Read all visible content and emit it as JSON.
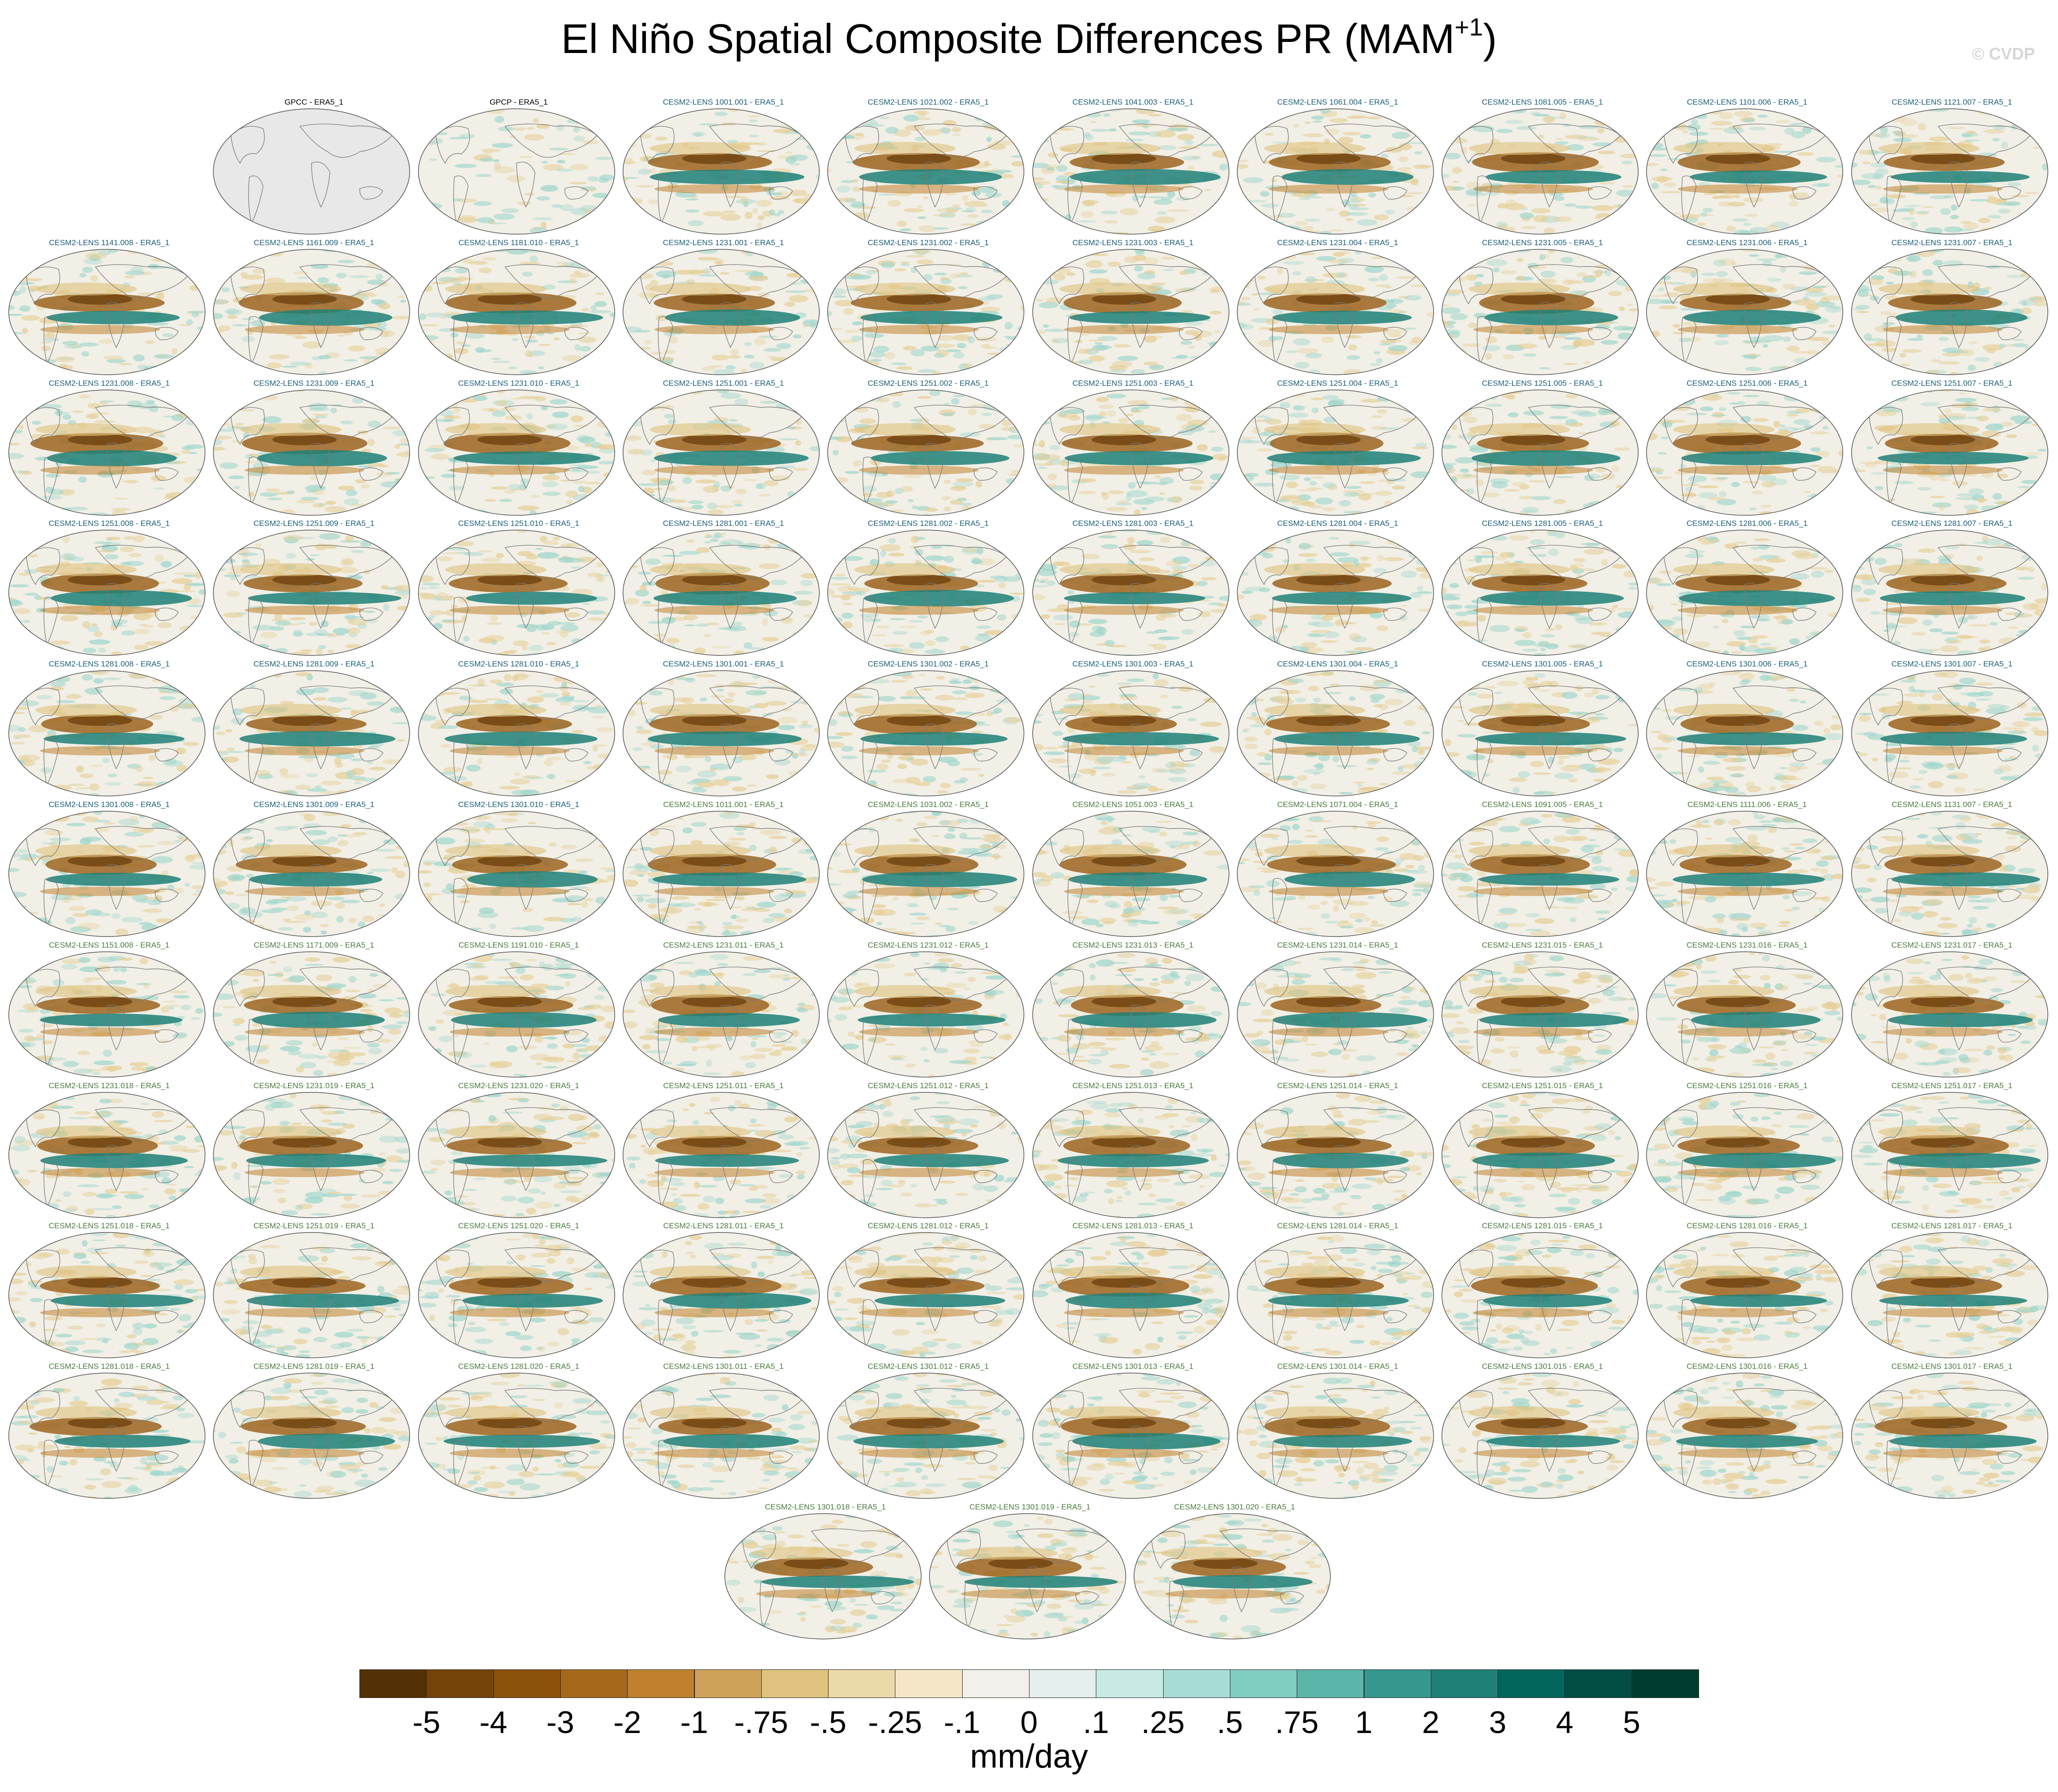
{
  "figure": {
    "title": "El Niño Spatial Composite Differences PR (MAM",
    "title_sup": "+1",
    "title_close": ")",
    "watermark": "© CVDP",
    "units": "mm/day"
  },
  "colorbar": {
    "ticks": [
      "-5",
      "-4",
      "-3",
      "-2",
      "-1",
      "-.75",
      "-.5",
      "-.25",
      "-.1",
      "0",
      ".1",
      ".25",
      ".5",
      ".75",
      "1",
      "2",
      "3",
      "4",
      "5"
    ],
    "colors": [
      "#543005",
      "#744409",
      "#8c510a",
      "#a6691c",
      "#bf812d",
      "#cfa25a",
      "#dfc27d",
      "#ecd9a8",
      "#f3e7c7",
      "#f2f0ea",
      "#e4efed",
      "#c7eae5",
      "#a6dcd3",
      "#80cdc1",
      "#5bb5a8",
      "#35978f",
      "#1f8077",
      "#01665e",
      "#024e45",
      "#003c30"
    ]
  },
  "panels": [
    {
      "label": "GPCC - ERA5_1",
      "group": "obs"
    },
    {
      "label": "GPCP - ERA5_1",
      "group": "obs"
    },
    {
      "label": "CESM2-LENS 1001.001 - ERA5_1",
      "group": "cmip"
    },
    {
      "label": "CESM2-LENS 1021.002 - ERA5_1",
      "group": "cmip"
    },
    {
      "label": "CESM2-LENS 1041.003 - ERA5_1",
      "group": "cmip"
    },
    {
      "label": "CESM2-LENS 1061.004 - ERA5_1",
      "group": "cmip"
    },
    {
      "label": "CESM2-LENS 1081.005 - ERA5_1",
      "group": "cmip"
    },
    {
      "label": "CESM2-LENS 1101.006 - ERA5_1",
      "group": "cmip"
    },
    {
      "label": "CESM2-LENS 1121.007 - ERA5_1",
      "group": "cmip"
    },
    {
      "label": "CESM2-LENS 1141.008 - ERA5_1",
      "group": "cmip"
    },
    {
      "label": "CESM2-LENS 1161.009 - ERA5_1",
      "group": "cmip"
    },
    {
      "label": "CESM2-LENS 1181.010 - ERA5_1",
      "group": "cmip"
    },
    {
      "label": "CESM2-LENS 1231.001 - ERA5_1",
      "group": "cmip"
    },
    {
      "label": "CESM2-LENS 1231.002 - ERA5_1",
      "group": "cmip"
    },
    {
      "label": "CESM2-LENS 1231.003 - ERA5_1",
      "group": "cmip"
    },
    {
      "label": "CESM2-LENS 1231.004 - ERA5_1",
      "group": "cmip"
    },
    {
      "label": "CESM2-LENS 1231.005 - ERA5_1",
      "group": "cmip"
    },
    {
      "label": "CESM2-LENS 1231.006 - ERA5_1",
      "group": "cmip"
    },
    {
      "label": "CESM2-LENS 1231.007 - ERA5_1",
      "group": "cmip"
    },
    {
      "label": "CESM2-LENS 1231.008 - ERA5_1",
      "group": "cmip"
    },
    {
      "label": "CESM2-LENS 1231.009 - ERA5_1",
      "group": "cmip"
    },
    {
      "label": "CESM2-LENS 1231.010 - ERA5_1",
      "group": "cmip"
    },
    {
      "label": "CESM2-LENS 1251.001 - ERA5_1",
      "group": "cmip"
    },
    {
      "label": "CESM2-LENS 1251.002 - ERA5_1",
      "group": "cmip"
    },
    {
      "label": "CESM2-LENS 1251.003 - ERA5_1",
      "group": "cmip"
    },
    {
      "label": "CESM2-LENS 1251.004 - ERA5_1",
      "group": "cmip"
    },
    {
      "label": "CESM2-LENS 1251.005 - ERA5_1",
      "group": "cmip"
    },
    {
      "label": "CESM2-LENS 1251.006 - ERA5_1",
      "group": "cmip"
    },
    {
      "label": "CESM2-LENS 1251.007 - ERA5_1",
      "group": "cmip"
    },
    {
      "label": "CESM2-LENS 1251.008 - ERA5_1",
      "group": "cmip"
    },
    {
      "label": "CESM2-LENS 1251.009 - ERA5_1",
      "group": "cmip"
    },
    {
      "label": "CESM2-LENS 1251.010 - ERA5_1",
      "group": "cmip"
    },
    {
      "label": "CESM2-LENS 1281.001 - ERA5_1",
      "group": "cmip"
    },
    {
      "label": "CESM2-LENS 1281.002 - ERA5_1",
      "group": "cmip"
    },
    {
      "label": "CESM2-LENS 1281.003 - ERA5_1",
      "group": "cmip"
    },
    {
      "label": "CESM2-LENS 1281.004 - ERA5_1",
      "group": "cmip"
    },
    {
      "label": "CESM2-LENS 1281.005 - ERA5_1",
      "group": "cmip"
    },
    {
      "label": "CESM2-LENS 1281.006 - ERA5_1",
      "group": "cmip"
    },
    {
      "label": "CESM2-LENS 1281.007 - ERA5_1",
      "group": "cmip"
    },
    {
      "label": "CESM2-LENS 1281.008 - ERA5_1",
      "group": "cmip"
    },
    {
      "label": "CESM2-LENS 1281.009 - ERA5_1",
      "group": "cmip"
    },
    {
      "label": "CESM2-LENS 1281.010 - ERA5_1",
      "group": "cmip"
    },
    {
      "label": "CESM2-LENS 1301.001 - ERA5_1",
      "group": "cmip"
    },
    {
      "label": "CESM2-LENS 1301.002 - ERA5_1",
      "group": "cmip"
    },
    {
      "label": "CESM2-LENS 1301.003 - ERA5_1",
      "group": "cmip"
    },
    {
      "label": "CESM2-LENS 1301.004 - ERA5_1",
      "group": "cmip"
    },
    {
      "label": "CESM2-LENS 1301.005 - ERA5_1",
      "group": "cmip"
    },
    {
      "label": "CESM2-LENS 1301.006 - ERA5_1",
      "group": "cmip"
    },
    {
      "label": "CESM2-LENS 1301.007 - ERA5_1",
      "group": "cmip"
    },
    {
      "label": "CESM2-LENS 1301.008 - ERA5_1",
      "group": "cmip"
    },
    {
      "label": "CESM2-LENS 1301.009 - ERA5_1",
      "group": "cmip"
    },
    {
      "label": "CESM2-LENS 1301.010 - ERA5_1",
      "group": "cmip"
    },
    {
      "label": "CESM2-LENS 1011.001 - ERA5_1",
      "group": "smbb"
    },
    {
      "label": "CESM2-LENS 1031.002 - ERA5_1",
      "group": "smbb"
    },
    {
      "label": "CESM2-LENS 1051.003 - ERA5_1",
      "group": "smbb"
    },
    {
      "label": "CESM2-LENS 1071.004 - ERA5_1",
      "group": "smbb"
    },
    {
      "label": "CESM2-LENS 1091.005 - ERA5_1",
      "group": "smbb"
    },
    {
      "label": "CESM2-LENS 1111.006 - ERA5_1",
      "group": "smbb"
    },
    {
      "label": "CESM2-LENS 1131.007 - ERA5_1",
      "group": "smbb"
    },
    {
      "label": "CESM2-LENS 1151.008 - ERA5_1",
      "group": "smbb"
    },
    {
      "label": "CESM2-LENS 1171.009 - ERA5_1",
      "group": "smbb"
    },
    {
      "label": "CESM2-LENS 1191.010 - ERA5_1",
      "group": "smbb"
    },
    {
      "label": "CESM2-LENS 1231.011 - ERA5_1",
      "group": "smbb"
    },
    {
      "label": "CESM2-LENS 1231.012 - ERA5_1",
      "group": "smbb"
    },
    {
      "label": "CESM2-LENS 1231.013 - ERA5_1",
      "group": "smbb"
    },
    {
      "label": "CESM2-LENS 1231.014 - ERA5_1",
      "group": "smbb"
    },
    {
      "label": "CESM2-LENS 1231.015 - ERA5_1",
      "group": "smbb"
    },
    {
      "label": "CESM2-LENS 1231.016 - ERA5_1",
      "group": "smbb"
    },
    {
      "label": "CESM2-LENS 1231.017 - ERA5_1",
      "group": "smbb"
    },
    {
      "label": "CESM2-LENS 1231.018 - ERA5_1",
      "group": "smbb"
    },
    {
      "label": "CESM2-LENS 1231.019 - ERA5_1",
      "group": "smbb"
    },
    {
      "label": "CESM2-LENS 1231.020 - ERA5_1",
      "group": "smbb"
    },
    {
      "label": "CESM2-LENS 1251.011 - ERA5_1",
      "group": "smbb"
    },
    {
      "label": "CESM2-LENS 1251.012 - ERA5_1",
      "group": "smbb"
    },
    {
      "label": "CESM2-LENS 1251.013 - ERA5_1",
      "group": "smbb"
    },
    {
      "label": "CESM2-LENS 1251.014 - ERA5_1",
      "group": "smbb"
    },
    {
      "label": "CESM2-LENS 1251.015 - ERA5_1",
      "group": "smbb"
    },
    {
      "label": "CESM2-LENS 1251.016 - ERA5_1",
      "group": "smbb"
    },
    {
      "label": "CESM2-LENS 1251.017 - ERA5_1",
      "group": "smbb"
    },
    {
      "label": "CESM2-LENS 1251.018 - ERA5_1",
      "group": "smbb"
    },
    {
      "label": "CESM2-LENS 1251.019 - ERA5_1",
      "group": "smbb"
    },
    {
      "label": "CESM2-LENS 1251.020 - ERA5_1",
      "group": "smbb"
    },
    {
      "label": "CESM2-LENS 1281.011 - ERA5_1",
      "group": "smbb"
    },
    {
      "label": "CESM2-LENS 1281.012 - ERA5_1",
      "group": "smbb"
    },
    {
      "label": "CESM2-LENS 1281.013 - ERA5_1",
      "group": "smbb"
    },
    {
      "label": "CESM2-LENS 1281.014 - ERA5_1",
      "group": "smbb"
    },
    {
      "label": "CESM2-LENS 1281.015 - ERA5_1",
      "group": "smbb"
    },
    {
      "label": "CESM2-LENS 1281.016 - ERA5_1",
      "group": "smbb"
    },
    {
      "label": "CESM2-LENS 1281.017 - ERA5_1",
      "group": "smbb"
    },
    {
      "label": "CESM2-LENS 1281.018 - ERA5_1",
      "group": "smbb"
    },
    {
      "label": "CESM2-LENS 1281.019 - ERA5_1",
      "group": "smbb"
    },
    {
      "label": "CESM2-LENS 1281.020 - ERA5_1",
      "group": "smbb"
    },
    {
      "label": "CESM2-LENS 1301.011 - ERA5_1",
      "group": "smbb"
    },
    {
      "label": "CESM2-LENS 1301.012 - ERA5_1",
      "group": "smbb"
    },
    {
      "label": "CESM2-LENS 1301.013 - ERA5_1",
      "group": "smbb"
    },
    {
      "label": "CESM2-LENS 1301.014 - ERA5_1",
      "group": "smbb"
    },
    {
      "label": "CESM2-LENS 1301.015 - ERA5_1",
      "group": "smbb"
    },
    {
      "label": "CESM2-LENS 1301.016 - ERA5_1",
      "group": "smbb"
    },
    {
      "label": "CESM2-LENS 1301.017 - ERA5_1",
      "group": "smbb"
    },
    {
      "label": "CESM2-LENS 1301.018 - ERA5_1",
      "group": "smbb"
    },
    {
      "label": "CESM2-LENS 1301.019 - ERA5_1",
      "group": "smbb"
    },
    {
      "label": "CESM2-LENS 1301.020 - ERA5_1",
      "group": "smbb"
    }
  ]
}
